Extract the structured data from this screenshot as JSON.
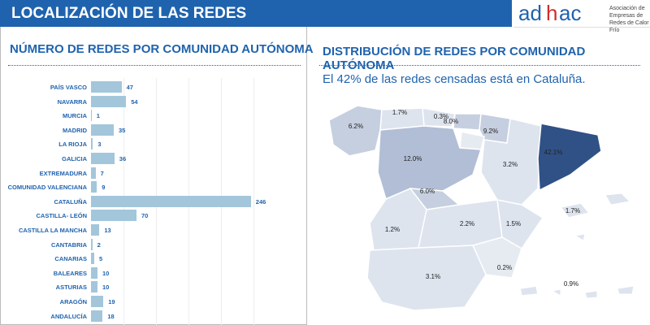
{
  "header": {
    "title": "LOCALIZACIÓN DE LAS REDES"
  },
  "logo": {
    "wordmark": "adhac",
    "tagline": "Asociación de Empresas de Redes de Calor y Frío"
  },
  "left": {
    "title": "NÚMERO DE REDES POR COMUNIDAD AUTÓNOMA"
  },
  "right": {
    "title": "DISTRIBUCIÓN DE REDES POR COMUNIDAD AUTÓNOMA",
    "subtitle": "El 42% de las redes censadas está en Cataluña."
  },
  "chart_data": [
    {
      "type": "bar",
      "orientation": "horizontal",
      "categories": [
        "PAÍS VASCO",
        "NAVARRA",
        "MURCIA",
        "MADRID",
        "LA RIOJA",
        "GALICIA",
        "EXTREMADURA",
        "COMUNIDAD VALENCIANA",
        "CATALUÑA",
        "CASTILLA- LEÓN",
        "CASTILLA LA MANCHA",
        "CANTABRIA",
        "CANARIAS",
        "BALEARES",
        "ASTURIAS",
        "ARAGÓN",
        "ANDALUCÍA"
      ],
      "values": [
        47,
        54,
        1,
        35,
        3,
        36,
        7,
        9,
        246,
        70,
        13,
        2,
        5,
        10,
        10,
        19,
        18
      ],
      "labels": [
        "47",
        "54",
        "1",
        "35",
        "3",
        "36",
        "7",
        "9",
        "246",
        "70",
        "13",
        "2",
        "5",
        "10",
        "10",
        "19",
        "18"
      ],
      "xlim": [
        0,
        300
      ],
      "grid": true,
      "bar_color": "#a3c6db"
    },
    {
      "type": "map",
      "regions": [
        {
          "name": "Galicia",
          "pct": "6.2%",
          "color": "#c5cfe0"
        },
        {
          "name": "Asturias",
          "pct": "1.7%",
          "color": "#dde4ee"
        },
        {
          "name": "Cantabria",
          "pct": "0.3%",
          "color": "#dde4ee"
        },
        {
          "name": "País Vasco",
          "pct": "8.0%",
          "color": "#c5cfe0"
        },
        {
          "name": "Navarra",
          "pct": "9.2%",
          "color": "#c5cfe0"
        },
        {
          "name": "La Rioja",
          "pct": "0.5%",
          "color": "#e6ebf2"
        },
        {
          "name": "Castilla-León",
          "pct": "12.0%",
          "color": "#b1bed5"
        },
        {
          "name": "Madrid",
          "pct": "6.0%",
          "color": "#c5cfe0"
        },
        {
          "name": "Aragón",
          "pct": "3.2%",
          "color": "#dde4ee"
        },
        {
          "name": "Cataluña",
          "pct": "42.1%",
          "color": "#2f5186"
        },
        {
          "name": "Extremadura",
          "pct": "1.2%",
          "color": "#dde4ee"
        },
        {
          "name": "Castilla La Mancha",
          "pct": "2.2%",
          "color": "#dde4ee"
        },
        {
          "name": "Comunidad Valenciana",
          "pct": "1.5%",
          "color": "#dde4ee"
        },
        {
          "name": "Murcia",
          "pct": "0.2%",
          "color": "#e6ebf2"
        },
        {
          "name": "Andalucía",
          "pct": "3.1%",
          "color": "#dde4ee"
        },
        {
          "name": "Baleares",
          "pct": "1.7%",
          "color": "#dde4ee"
        },
        {
          "name": "Canarias",
          "pct": "0.9%",
          "color": "#dde4ee"
        }
      ]
    }
  ]
}
